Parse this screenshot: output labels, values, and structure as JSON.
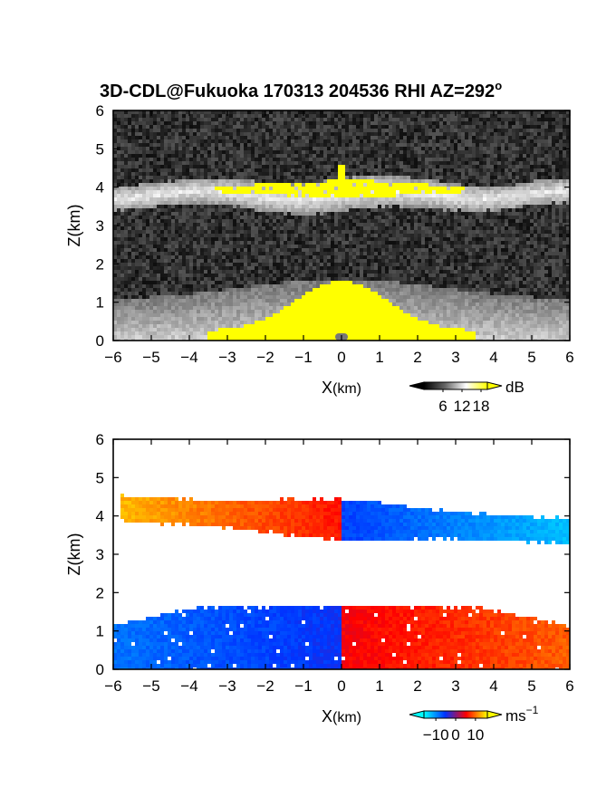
{
  "chart_data": [
    {
      "type": "heatmap",
      "title_main": "3D-CDL@Fukuoka 170313 204536 RHI AZ=292",
      "title_sup": "o",
      "variable": "intensity",
      "xlabel_main": "X",
      "xlabel_unit": "(km)",
      "ylabel_main": "Z",
      "ylabel_unit": "(km)",
      "xlim": [
        -6,
        6
      ],
      "ylim": [
        0,
        6
      ],
      "xticks": [
        "-6",
        "-5",
        "-4",
        "-3",
        "-2",
        "-1",
        "0",
        "1",
        "2",
        "3",
        "4",
        "5",
        "6"
      ],
      "yticks": [
        "0",
        "1",
        "2",
        "3",
        "4",
        "5",
        "6"
      ],
      "colorbar": {
        "unit": "dB",
        "ticks": [
          "6",
          "12",
          "18"
        ],
        "tick_values": [
          6,
          12,
          18
        ],
        "range": [
          0,
          20
        ],
        "colors": [
          "#000000",
          "#ffffff",
          "#ffff00"
        ],
        "extend": "both"
      },
      "layers": [
        {
          "feature": "ground clutter cone",
          "x": [
            -6,
            6
          ],
          "z": [
            0,
            1.6
          ],
          "level_db": [
            8,
            20
          ]
        },
        {
          "feature": "elevated cloud layer",
          "x": [
            -6,
            6
          ],
          "z": [
            3.2,
            4.6
          ],
          "level_db": [
            8,
            20
          ]
        }
      ]
    },
    {
      "type": "heatmap",
      "variable": "radial velocity",
      "xlabel_main": "X",
      "xlabel_unit": "(km)",
      "ylabel_main": "Z",
      "ylabel_unit": "(km)",
      "xlim": [
        -6,
        6
      ],
      "ylim": [
        0,
        6
      ],
      "xticks": [
        "-6",
        "-5",
        "-4",
        "-3",
        "-2",
        "-1",
        "0",
        "1",
        "2",
        "3",
        "4",
        "5",
        "6"
      ],
      "yticks": [
        "0",
        "1",
        "2",
        "3",
        "4",
        "5",
        "6"
      ],
      "colorbar": {
        "unit": "ms",
        "unit_sup": "−1",
        "ticks": [
          "−10",
          "0",
          "10"
        ],
        "tick_values": [
          -10,
          0,
          10
        ],
        "range": [
          -16,
          16
        ],
        "colors": [
          "#00ffff",
          "#0033ff",
          "#ff0000",
          "#ffff00"
        ],
        "extend": "both"
      },
      "layers": [
        {
          "feature": "lower layer",
          "x": [
            -6,
            6
          ],
          "z": [
            0,
            1.7
          ],
          "velocity": [
            -8,
            8
          ]
        },
        {
          "feature": "upper layer",
          "x": [
            -6,
            6
          ],
          "z": [
            3.2,
            4.7
          ],
          "velocity": [
            -10,
            12
          ]
        }
      ]
    }
  ]
}
